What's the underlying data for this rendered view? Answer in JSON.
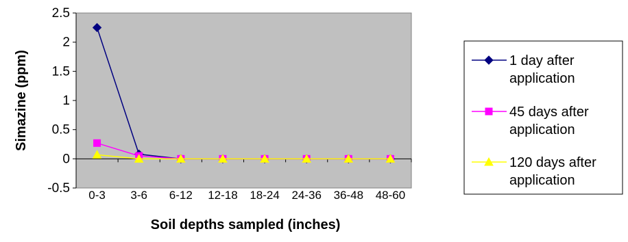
{
  "chart_data": {
    "type": "line",
    "title": "",
    "xlabel": "Soil depths sampled (inches)",
    "ylabel": "Simazine (ppm)",
    "categories": [
      "0-3",
      "3-6",
      "6-12",
      "12-18",
      "18-24",
      "24-36",
      "36-48",
      "48-60"
    ],
    "ylim": [
      -0.5,
      2.5
    ],
    "yticks": [
      "2.5",
      "2",
      "1.5",
      "1",
      "0.5",
      "0",
      "-0.5"
    ],
    "ytick_values": [
      2.5,
      2,
      1.5,
      1,
      0.5,
      0,
      -0.5
    ],
    "grid": false,
    "plot_background": "#c0c0c0",
    "legend_position": "right",
    "series": [
      {
        "name_lines": [
          "1 day after",
          "application"
        ],
        "color": "#000080",
        "marker": "diamond",
        "values": [
          2.25,
          0.08,
          0,
          0,
          0,
          0,
          0,
          0
        ]
      },
      {
        "name_lines": [
          "45 days after",
          "application"
        ],
        "color": "#ff00ff",
        "marker": "square",
        "values": [
          0.27,
          0.05,
          0,
          0,
          0,
          0,
          0,
          0
        ]
      },
      {
        "name_lines": [
          "120 days after",
          "application"
        ],
        "color": "#ffff00",
        "marker": "triangle",
        "values": [
          0.07,
          0,
          0,
          0,
          0,
          0,
          0,
          0
        ]
      }
    ]
  }
}
